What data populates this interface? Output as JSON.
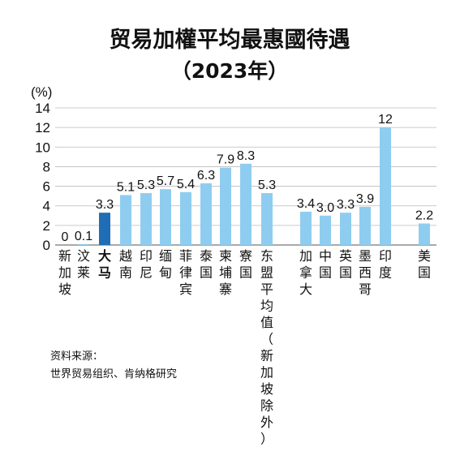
{
  "chart_data": {
    "type": "bar",
    "title": "贸易加權平均最惠國待遇",
    "subtitle": "（2023年）",
    "ylabel": "(%)",
    "ylim": [
      0,
      14
    ],
    "yticks": [
      "0",
      "2",
      "4",
      "6",
      "8",
      "10",
      "12",
      "14"
    ],
    "grid": true,
    "categories": [
      "新加坡",
      "汶莱",
      "大马",
      "越南",
      "印尼",
      "缅甸",
      "菲律宾",
      "泰国",
      "柬埔寨",
      "寮国",
      "东盟平均值（新加坡除外）",
      "加拿大",
      "中国",
      "英国",
      "墨西哥",
      "印度",
      "美国"
    ],
    "values": [
      0,
      0.1,
      3.3,
      5.1,
      5.3,
      5.7,
      5.4,
      6.3,
      7.9,
      8.3,
      5.3,
      3.4,
      3.0,
      3.3,
      3.9,
      12,
      2.2
    ],
    "value_labels": [
      "0",
      "0.1",
      "3.3",
      "5.1",
      "5.3",
      "5.7",
      "5.4",
      "6.3",
      "7.9",
      "8.3",
      "5.3",
      "3.4",
      "3.0",
      "3.3",
      "3.9",
      "12",
      "2.2"
    ],
    "highlight_index": 2,
    "colors": {
      "bar": "#8fcdf0",
      "highlight": "#1f6eb5",
      "grid": "#bbbbbb",
      "text": "#111111"
    }
  },
  "source": {
    "line1": "资料来源：",
    "line2": "世界贸易组织、肯纳格研究"
  }
}
